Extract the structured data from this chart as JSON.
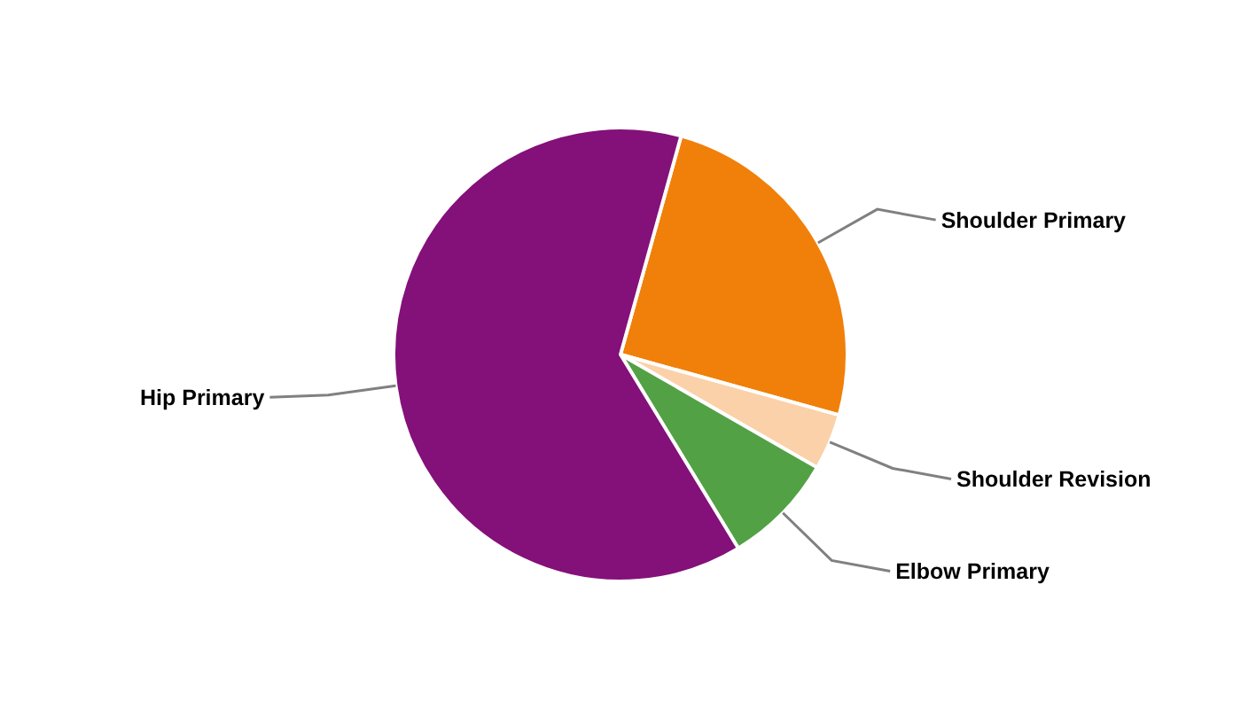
{
  "chart_data": {
    "type": "pie",
    "categories": [
      "Shoulder Primary",
      "Shoulder Revision",
      "Elbow Primary",
      "Hip Primary"
    ],
    "values": [
      25,
      4,
      8,
      63
    ],
    "colors": [
      "#f0800a",
      "#fbd1a9",
      "#52a145",
      "#841079"
    ]
  }
}
